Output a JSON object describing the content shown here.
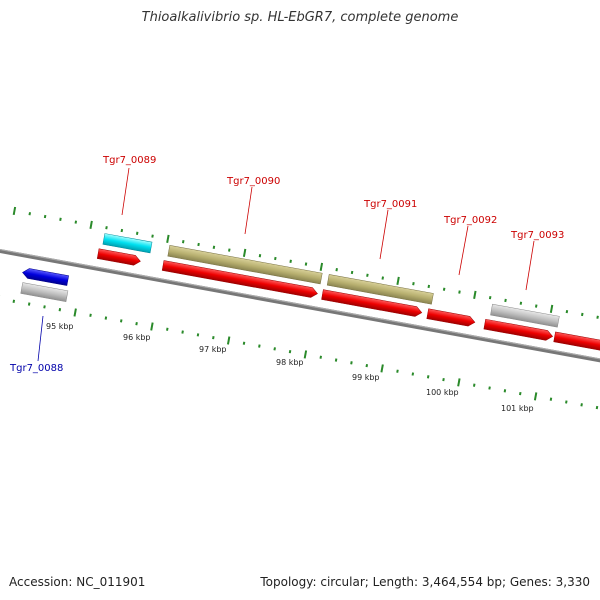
{
  "title": "Thioalkalivibrio sp. HL-EbGR7, complete genome",
  "footer": {
    "accession": "Accession: NC_011901",
    "stats": "Topology: circular; Length: 3,464,554 bp; Genes: 3,330"
  },
  "colors": {
    "cds": "#ee0000",
    "rna": "#00e0f0",
    "hypothetical": "#c0c0c0",
    "reverse_gene": "#0000dd",
    "khaki_feature": "#b8b070",
    "tick": "#2a8a2a",
    "backbone": "#777777",
    "label_forward": "#cc0000",
    "label_reverse": "#0000aa"
  },
  "scale_labels": [
    "95 kbp",
    "96 kbp",
    "97 kbp",
    "98 kbp",
    "99 kbp",
    "100 kbp",
    "101 kbp"
  ],
  "gene_labels": [
    {
      "text": "Tgr7_0088",
      "strand": "reverse"
    },
    {
      "text": "Tgr7_0089",
      "strand": "forward"
    },
    {
      "text": "Tgr7_0090",
      "strand": "forward"
    },
    {
      "text": "Tgr7_0091",
      "strand": "forward"
    },
    {
      "text": "Tgr7_0092",
      "strand": "forward"
    },
    {
      "text": "Tgr7_0093",
      "strand": "forward"
    }
  ]
}
